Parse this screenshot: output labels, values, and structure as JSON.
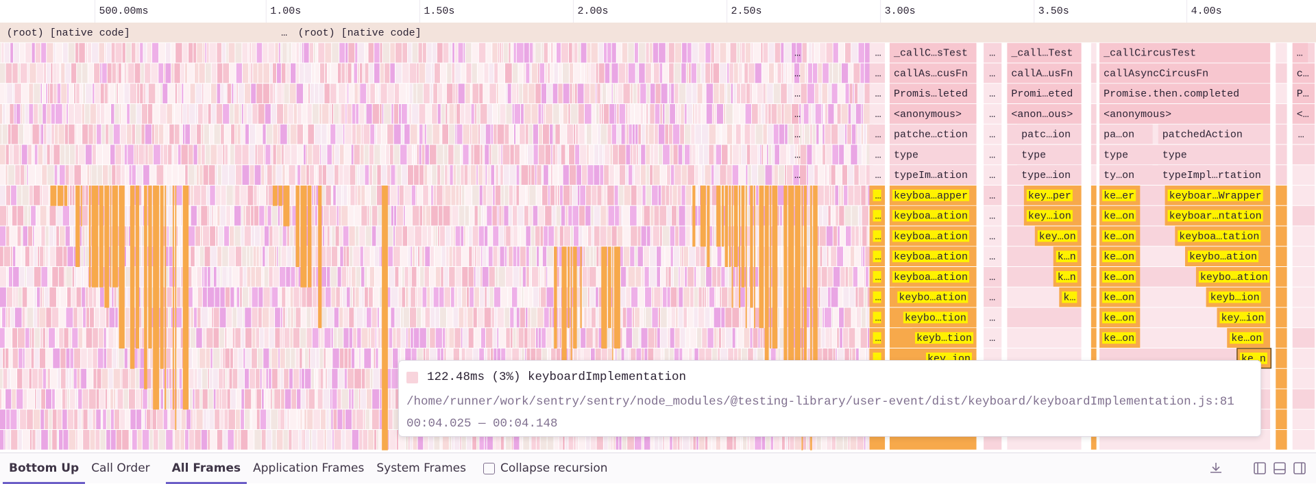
{
  "axis_ticks": [
    "500.00ms",
    "1.00s",
    "1.50s",
    "2.00s",
    "2.50s",
    "3.00s",
    "3.50s",
    "4.00s"
  ],
  "ellipsis": "…",
  "frames": [
    {
      "label": "(root) [native code]"
    },
    {
      "label": "…"
    },
    {
      "label": "(root) [native code]"
    },
    {
      "label": "_callC…sTest"
    },
    {
      "label": "_call…Test"
    },
    {
      "label": "_callCircusTest"
    },
    {
      "label": "…"
    },
    {
      "label": "callAs…cusFn"
    },
    {
      "label": "callA…usFn"
    },
    {
      "label": "callAsyncCircusFn"
    },
    {
      "label": "c…"
    },
    {
      "label": "Promis…leted"
    },
    {
      "label": "Promi…eted"
    },
    {
      "label": "Promise.then.completed"
    },
    {
      "label": "P…"
    },
    {
      "label": "<anonymous>"
    },
    {
      "label": "<anon…ous>"
    },
    {
      "label": "<anonymous>"
    },
    {
      "label": "<…"
    },
    {
      "label": "patche…ction"
    },
    {
      "label": "patc…ion"
    },
    {
      "label": "pa…on"
    },
    {
      "label": "patchedAction"
    },
    {
      "label": "type"
    },
    {
      "label": "type"
    },
    {
      "label": "type"
    },
    {
      "label": "type"
    },
    {
      "label": "typeIm…ation"
    },
    {
      "label": "type…ion"
    },
    {
      "label": "ty…on"
    },
    {
      "label": "typeImpl…rtation"
    },
    {
      "label": "keyboa…apper"
    },
    {
      "label": "key…per"
    },
    {
      "label": "ke…er"
    },
    {
      "label": "keyboar…Wrapper"
    },
    {
      "label": "keyboa…ation"
    },
    {
      "label": "key…ion"
    },
    {
      "label": "ke…on"
    },
    {
      "label": "keyboar…ntation"
    },
    {
      "label": "keyboa…ation"
    },
    {
      "label": "key…on"
    },
    {
      "label": "ke…on"
    },
    {
      "label": "keyboa…tation"
    },
    {
      "label": "keyboa…ation"
    },
    {
      "label": "k…n"
    },
    {
      "label": "ke…on"
    },
    {
      "label": "keybo…ation"
    },
    {
      "label": "keyboa…ation"
    },
    {
      "label": "k…n"
    },
    {
      "label": "ke…on"
    },
    {
      "label": "keybo…ation"
    },
    {
      "label": "keybo…ation"
    },
    {
      "label": "k…"
    },
    {
      "label": "ke…on"
    },
    {
      "label": "keyb…ion"
    },
    {
      "label": "keybo…tion"
    },
    {
      "label": "ke…on"
    },
    {
      "label": "key…ion"
    },
    {
      "label": "keyb…tion"
    },
    {
      "label": "ke…on"
    },
    {
      "label": "ke…on"
    },
    {
      "label": "key…ion"
    },
    {
      "label": "ke…n"
    }
  ],
  "tooltip": {
    "title": "122.48ms (3%) keyboardImplementation",
    "path": "/home/runner/work/sentry/sentry/node_modules/@testing-library/user-event/dist/keyboard/keyboardImplementation.js:81",
    "range": "00:04.025 — 00:04.148"
  },
  "toolbar": {
    "views": [
      "Bottom Up",
      "Call Order"
    ],
    "filters": [
      "All Frames",
      "Application Frames",
      "System Frames"
    ],
    "checkbox": "Collapse recursion"
  }
}
